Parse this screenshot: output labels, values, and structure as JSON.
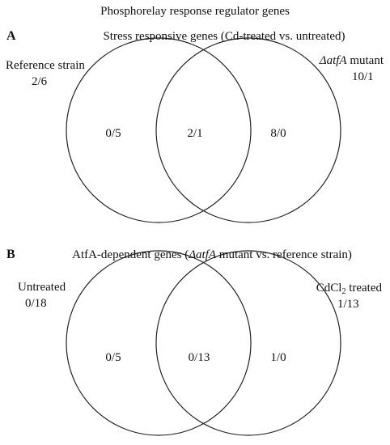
{
  "title": "Phosphorelay response regulator genes",
  "panel_a": {
    "letter": "A",
    "heading": "Stress responsive genes (Cd-treated vs. untreated)",
    "left_set": {
      "label": "Reference strain",
      "counts": "2/6"
    },
    "right_set": {
      "label_prefix": "ΔatfA",
      "label_suffix": " mutant",
      "counts": "10/1"
    },
    "regions": {
      "left_only": "0/5",
      "overlap": "2/1",
      "right_only": "8/0"
    }
  },
  "panel_b": {
    "letter": "B",
    "heading_prefix": "AtfA-dependent genes (",
    "heading_italic": "ΔatfA",
    "heading_suffix": " mutant vs. reference strain)",
    "left_set": {
      "label": "Untreated",
      "counts": "0/18"
    },
    "right_set": {
      "label_main": "CdCl",
      "label_sub": "2",
      "label_tail": " treated",
      "counts": "1/13"
    },
    "regions": {
      "left_only": "0/5",
      "overlap": "0/13",
      "right_only": "1/0"
    }
  }
}
